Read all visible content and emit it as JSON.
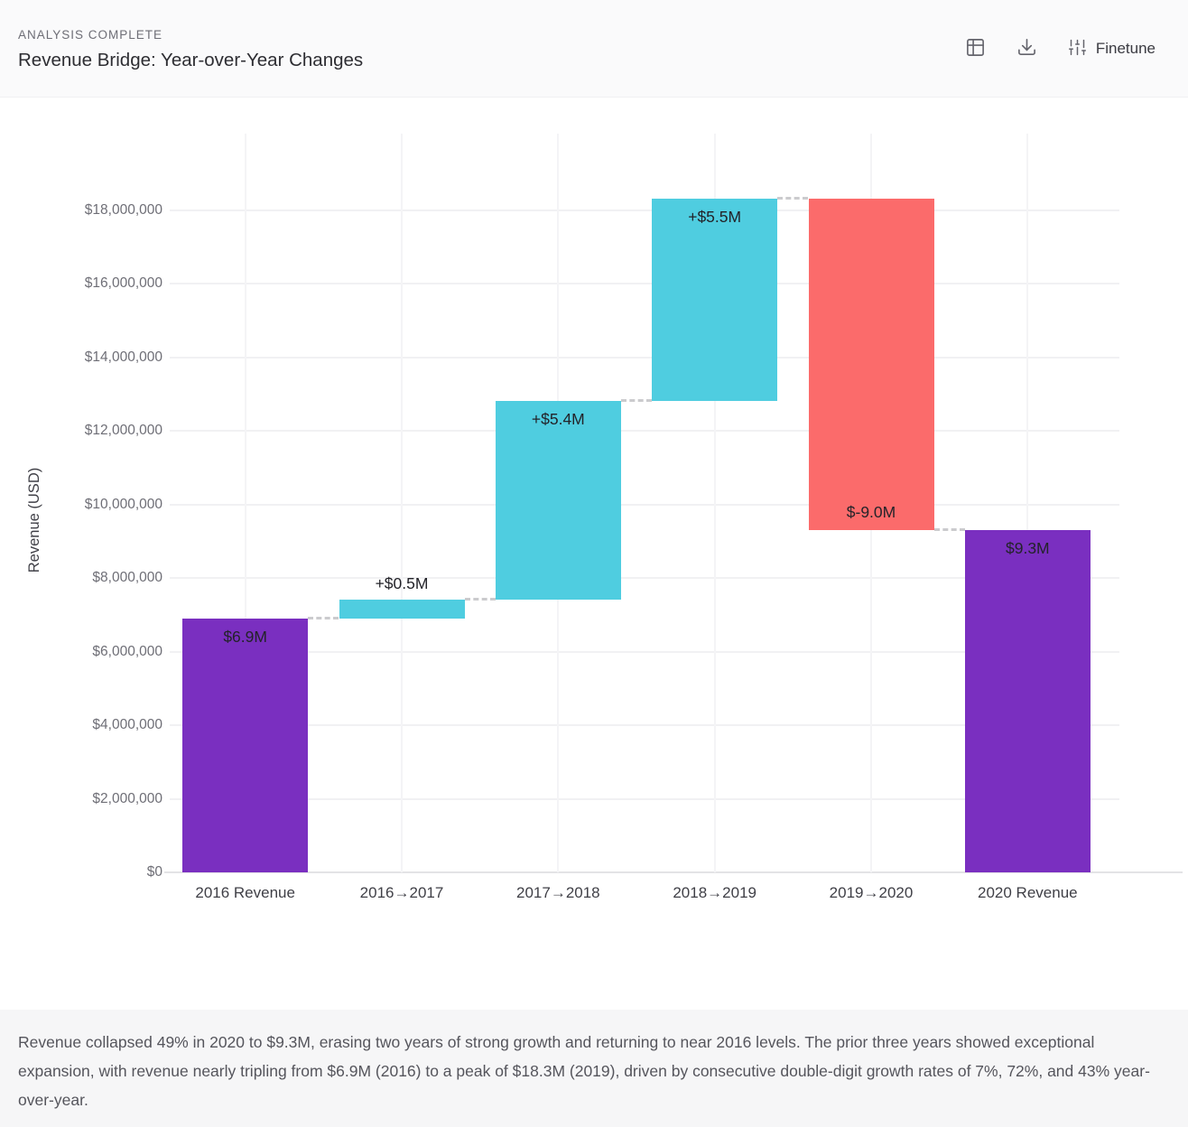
{
  "header": {
    "status": "ANALYSIS COMPLETE",
    "title": "Revenue Bridge: Year-over-Year Changes",
    "actions": {
      "table_view_icon": "table-grid",
      "download_icon": "download-tray-arrow",
      "finetune_icon": "vertical-sliders",
      "finetune_label": "Finetune"
    }
  },
  "chart_data": {
    "type": "waterfall",
    "title": "Revenue Bridge: Year-over-Year Changes",
    "xlabel": "",
    "ylabel": "Revenue (USD)",
    "ylim": [
      0,
      18500000
    ],
    "grid": true,
    "legend": null,
    "connector_style": "dashed",
    "categories": [
      "2016 Revenue",
      "2016→2017",
      "2017→2018",
      "2018→2019",
      "2019→2020",
      "2020 Revenue"
    ],
    "y_ticks": [
      {
        "value": 0,
        "label": "$0"
      },
      {
        "value": 2000000,
        "label": "$2,000,000"
      },
      {
        "value": 4000000,
        "label": "$4,000,000"
      },
      {
        "value": 6000000,
        "label": "$6,000,000"
      },
      {
        "value": 8000000,
        "label": "$8,000,000"
      },
      {
        "value": 10000000,
        "label": "$10,000,000"
      },
      {
        "value": 12000000,
        "label": "$12,000,000"
      },
      {
        "value": 14000000,
        "label": "$14,000,000"
      },
      {
        "value": 16000000,
        "label": "$16,000,000"
      },
      {
        "value": 18000000,
        "label": "$18,000,000"
      }
    ],
    "bars": [
      {
        "category": "2016 Revenue",
        "role": "total",
        "start": 0,
        "end": 6900000,
        "value": 6900000,
        "label": "$6.9M",
        "label_position": "inside-top"
      },
      {
        "category": "2016→2017",
        "role": "increase",
        "start": 6900000,
        "end": 7400000,
        "value": 500000,
        "label": "+$0.5M",
        "label_position": "above"
      },
      {
        "category": "2017→2018",
        "role": "increase",
        "start": 7400000,
        "end": 12800000,
        "value": 5400000,
        "label": "+$5.4M",
        "label_position": "inside-top"
      },
      {
        "category": "2018→2019",
        "role": "increase",
        "start": 12800000,
        "end": 18300000,
        "value": 5500000,
        "label": "+$5.5M",
        "label_position": "inside-top"
      },
      {
        "category": "2019→2020",
        "role": "decrease",
        "start": 18300000,
        "end": 9300000,
        "value": -9000000,
        "label": "$-9.0M",
        "label_position": "inside-bottom"
      },
      {
        "category": "2020 Revenue",
        "role": "total",
        "start": 0,
        "end": 9300000,
        "value": 9300000,
        "label": "$9.3M",
        "label_position": "inside-top"
      }
    ],
    "colors": {
      "total": "#7A2FC0",
      "increase": "#4FCDE0",
      "decrease": "#FB6B6B",
      "connector": "#CBCBCE",
      "grid": "#F1F1F3",
      "axis_line": "#E3E3E6"
    }
  },
  "footer": {
    "summary": "Revenue collapsed 49% in 2020 to $9.3M, erasing two years of strong growth and returning to near 2016 levels. The prior three years showed exceptional expansion, with revenue nearly tripling from $6.9M (2016) to a peak of $18.3M (2019), driven by consecutive double-digit growth rates of 7%, 72%, and 43% year-over-year."
  }
}
